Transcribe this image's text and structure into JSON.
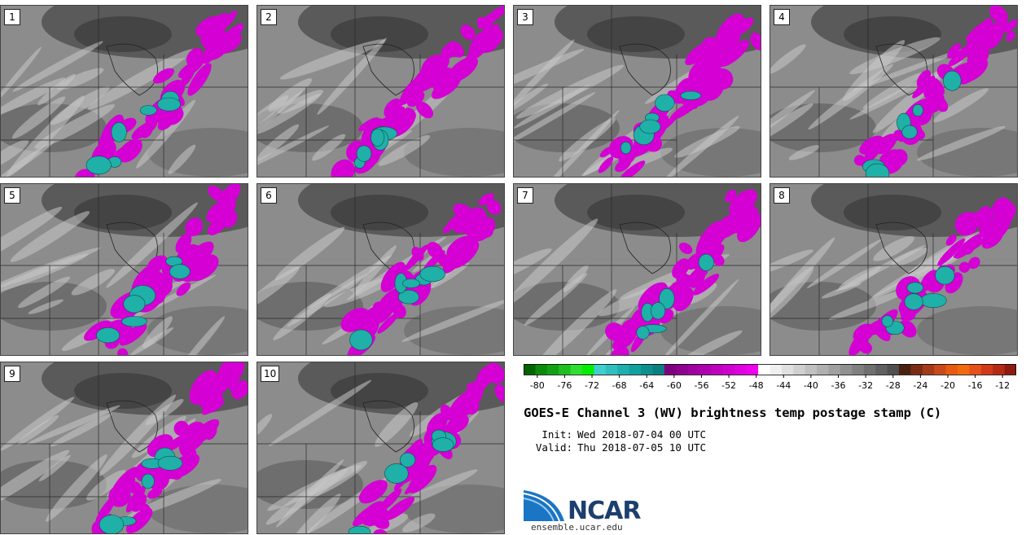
{
  "panels": [
    {
      "label": "1"
    },
    {
      "label": "2"
    },
    {
      "label": "3"
    },
    {
      "label": "4"
    },
    {
      "label": "5"
    },
    {
      "label": "6"
    },
    {
      "label": "7"
    },
    {
      "label": "8"
    },
    {
      "label": "9"
    },
    {
      "label": "10"
    }
  ],
  "colorbar": {
    "tick_labels": [
      "-80",
      "-76",
      "-72",
      "-68",
      "-64",
      "-60",
      "-56",
      "-52",
      "-48",
      "-44",
      "-40",
      "-36",
      "-32",
      "-28",
      "-24",
      "-20",
      "-16",
      "-12"
    ],
    "colors": [
      "#006400",
      "#0b8a0b",
      "#14a014",
      "#1fbf1f",
      "#2fdf2f",
      "#00ef00",
      "#3fcfcf",
      "#2fbfbf",
      "#1fafaf",
      "#10a0a0",
      "#0d8f8f",
      "#0b7f7f",
      "#7f007f",
      "#8f008f",
      "#9f009f",
      "#af00af",
      "#bf00bf",
      "#cf00cf",
      "#df00df",
      "#ef00ef",
      "#ffffff",
      "#f0f0f0",
      "#e0e0e0",
      "#d0d0d0",
      "#c0c0c0",
      "#b0b0b0",
      "#a0a0a0",
      "#909090",
      "#808080",
      "#707070",
      "#606060",
      "#505050",
      "#4a2010",
      "#7a2c14",
      "#a33a18",
      "#c8491c",
      "#e85a10",
      "#f26a10",
      "#e8501a",
      "#d13a18",
      "#b52a15",
      "#8f1a10"
    ]
  },
  "title": "GOES-E Channel 3 (WV) brightness temp postage stamp (C)",
  "init": {
    "label": "Init:",
    "value": "Wed 2018-07-04 00 UTC"
  },
  "valid": {
    "label": "Valid:",
    "value": "Thu 2018-07-05 10 UTC"
  },
  "logo": {
    "name": "NCAR",
    "url": "ensemble.ucar.edu"
  },
  "accent_colors": {
    "ncar_blue": "#1c3f6e",
    "ncar_light": "#3a8fd0"
  }
}
